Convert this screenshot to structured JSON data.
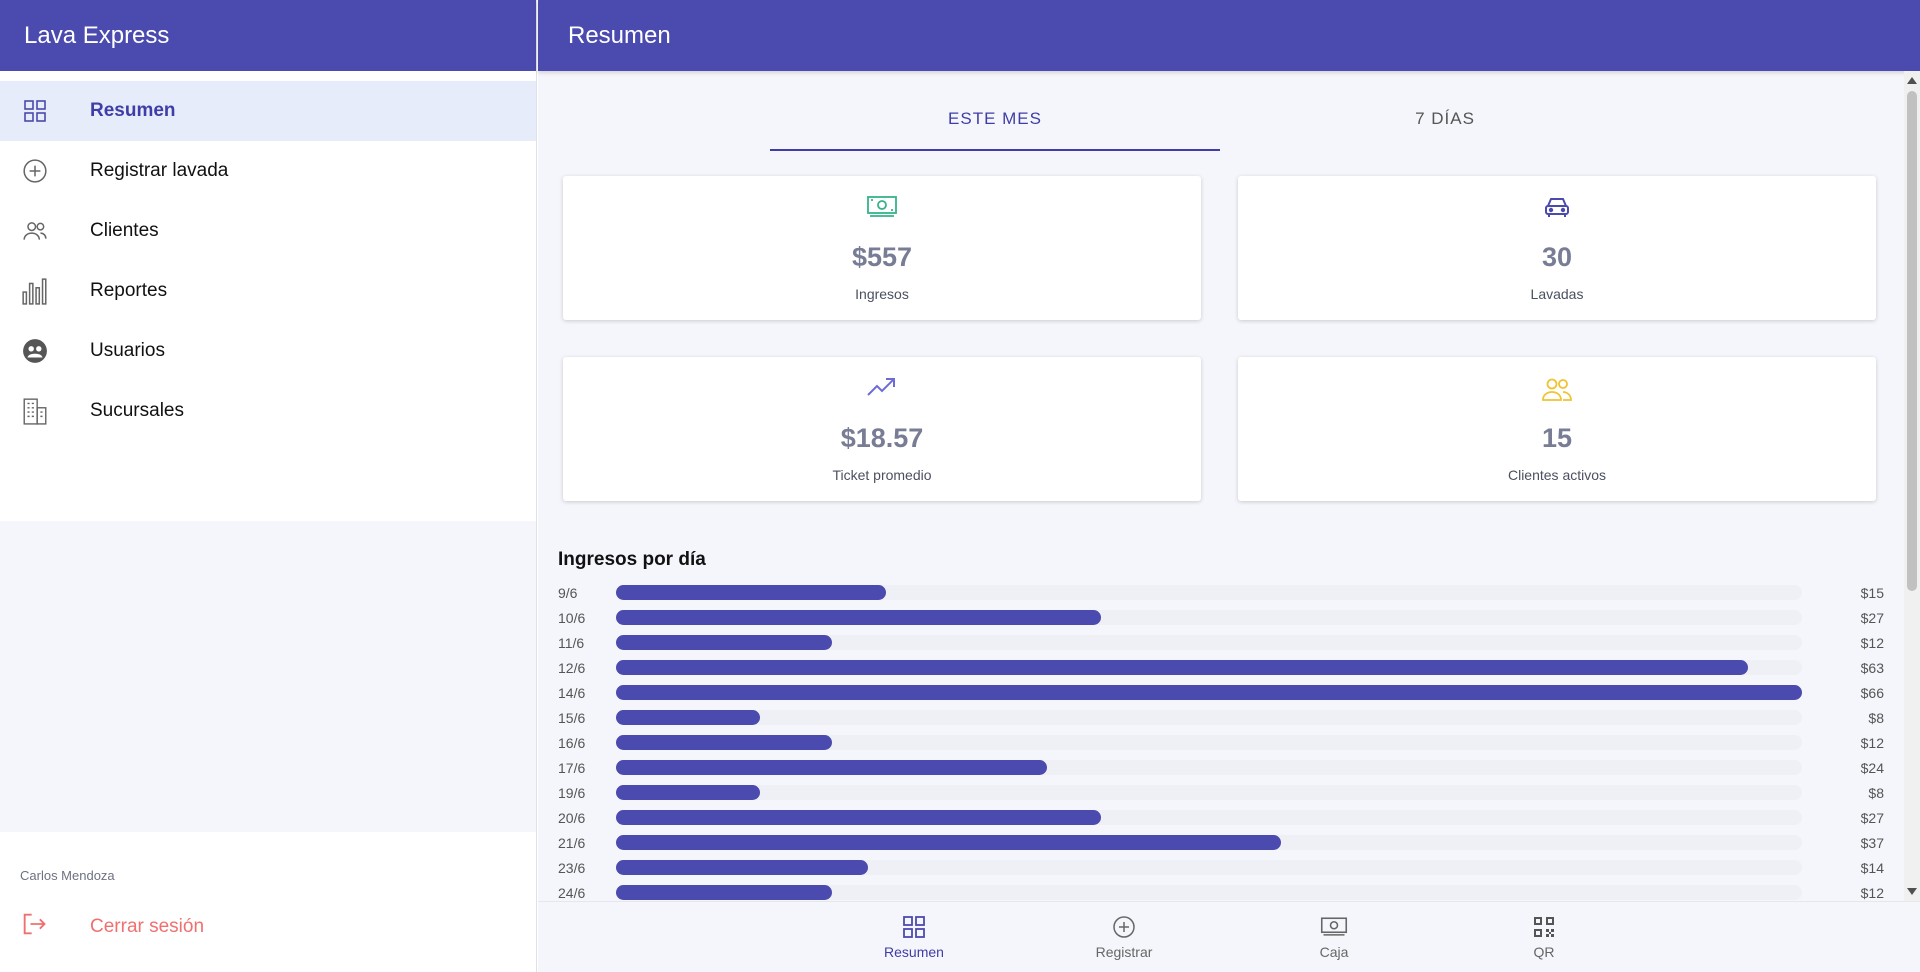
{
  "app": {
    "title": "Lava Express"
  },
  "sidebar": {
    "items": [
      {
        "label": "Resumen",
        "icon": "grid-icon",
        "active": true
      },
      {
        "label": "Registrar lavada",
        "icon": "plus-circle-icon"
      },
      {
        "label": "Clientes",
        "icon": "users-icon"
      },
      {
        "label": "Reportes",
        "icon": "bar-chart-icon"
      },
      {
        "label": "Usuarios",
        "icon": "user-circle-icon"
      },
      {
        "label": "Sucursales",
        "icon": "building-icon"
      }
    ],
    "user_name": "Carlos Mendoza",
    "logout_label": "Cerrar sesión"
  },
  "header": {
    "title": "Resumen"
  },
  "tabs": [
    {
      "label": "ESTE MES",
      "active": true
    },
    {
      "label": "7 DÍAS"
    }
  ],
  "stats": [
    {
      "value": "$557",
      "label": "Ingresos",
      "icon": "money-icon",
      "color": "#34b38a"
    },
    {
      "value": "30",
      "label": "Lavadas",
      "icon": "car-icon",
      "color": "#4b4aae"
    },
    {
      "value": "$18.57",
      "label": "Ticket promedio",
      "icon": "trending-up-icon",
      "color": "#6d6bd8"
    },
    {
      "value": "15",
      "label": "Clientes activos",
      "icon": "users-icon",
      "color": "#f1c232"
    }
  ],
  "chart_data": {
    "type": "bar",
    "title": "Ingresos por día",
    "categories": [
      "9/6",
      "10/6",
      "11/6",
      "12/6",
      "14/6",
      "15/6",
      "16/6",
      "17/6",
      "19/6",
      "20/6",
      "21/6",
      "23/6",
      "24/6"
    ],
    "values": [
      15,
      27,
      12,
      63,
      66,
      8,
      12,
      24,
      8,
      27,
      37,
      14,
      12
    ],
    "value_labels": [
      "$15",
      "$27",
      "$12",
      "$63",
      "$66",
      "$8",
      "$12",
      "$24",
      "$8",
      "$27",
      "$37",
      "$14",
      "$12"
    ],
    "orientation": "horizontal",
    "xlim": [
      0,
      66
    ],
    "grid": false,
    "colors": {
      "bar": "#4b4aae",
      "track": "#eef0f6"
    }
  },
  "bottom_nav": [
    {
      "label": "Resumen",
      "icon": "grid-icon",
      "active": true
    },
    {
      "label": "Registrar",
      "icon": "plus-circle-icon"
    },
    {
      "label": "Caja",
      "icon": "money-icon"
    },
    {
      "label": "QR",
      "icon": "qr-code-icon"
    }
  ],
  "colors": {
    "accent": "#4b4aae",
    "logout": "#f07070"
  }
}
